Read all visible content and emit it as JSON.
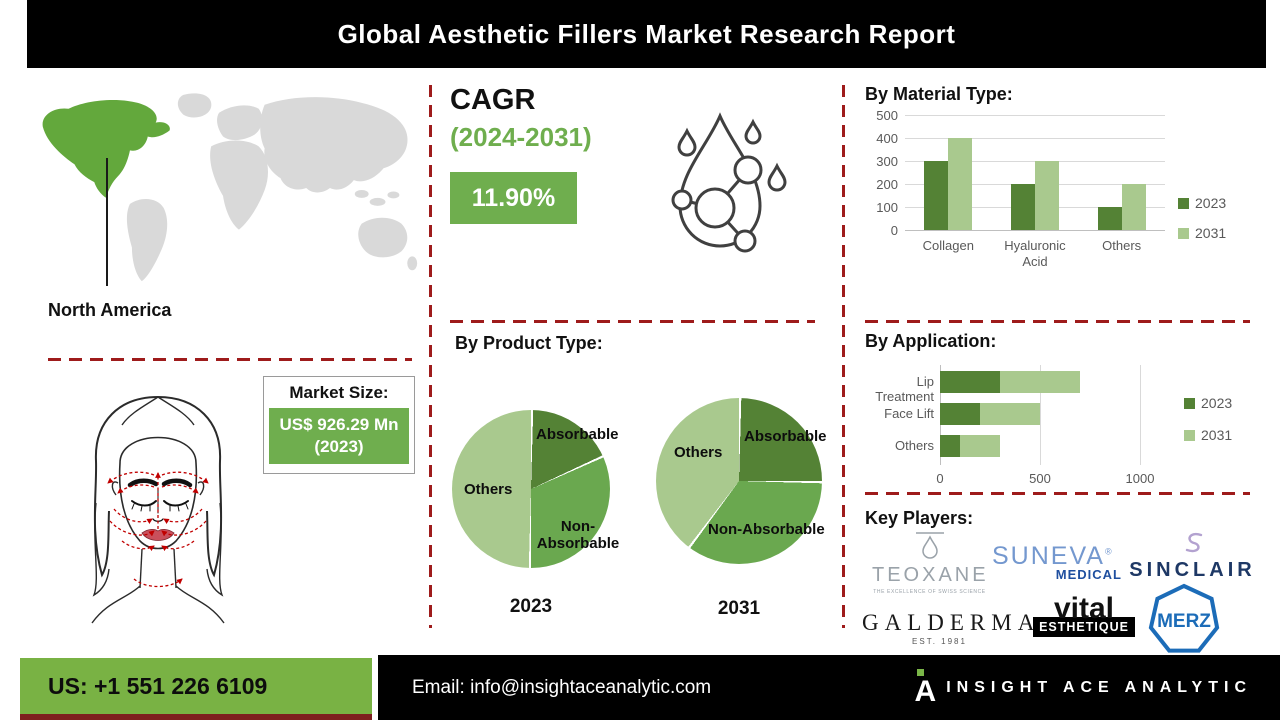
{
  "header": {
    "title": "Global Aesthetic Fillers Market Research Report"
  },
  "region": {
    "label": "North America"
  },
  "cagr": {
    "heading": "CAGR",
    "period": "(2024-2031)",
    "value": "11.90%"
  },
  "market_size": {
    "label": "Market Size:",
    "value": "US$ 926.29 Mn (2023)"
  },
  "chart_data": [
    {
      "id": "material",
      "type": "bar",
      "title": "By Material Type:",
      "categories": [
        "Collagen",
        "Hyaluronic Acid",
        "Others"
      ],
      "series": [
        {
          "name": "2023",
          "values": [
            300,
            200,
            100
          ]
        },
        {
          "name": "2031",
          "values": [
            400,
            300,
            200
          ]
        }
      ],
      "ylim": [
        0,
        500
      ],
      "yticks": [
        0,
        100,
        200,
        300,
        400,
        500
      ],
      "grid": true,
      "legend_position": "right",
      "colors": {
        "2023": "#548235",
        "2031": "#a9c98e"
      }
    },
    {
      "id": "product",
      "type": "pie",
      "title": "By Product Type:",
      "pies": [
        {
          "label": "2023",
          "slices": [
            {
              "name": "Absorbable",
              "pct": 18
            },
            {
              "name": "Non-Absorbable",
              "pct": 32
            },
            {
              "name": "Others",
              "pct": 50
            }
          ]
        },
        {
          "label": "2031",
          "slices": [
            {
              "name": "Absorbable",
              "pct": 25
            },
            {
              "name": "Non-Absorbable",
              "pct": 35
            },
            {
              "name": "Others",
              "pct": 40
            }
          ]
        }
      ],
      "colors": {
        "Absorbable": "#548235",
        "Non-Absorbable": "#6aa84f",
        "Others": "#a9c98e"
      }
    },
    {
      "id": "application",
      "type": "bar",
      "orientation": "horizontal-stacked",
      "title": "By Application:",
      "categories": [
        "Lip Treatment",
        "Face Lift",
        "Others"
      ],
      "series": [
        {
          "name": "2023",
          "values": [
            300,
            200,
            100
          ]
        },
        {
          "name": "2031",
          "values": [
            400,
            300,
            200
          ]
        }
      ],
      "xlim": [
        0,
        1000
      ],
      "xticks": [
        0,
        500,
        1000
      ],
      "grid": true,
      "legend_position": "right",
      "colors": {
        "2023": "#548235",
        "2031": "#a9c98e"
      }
    }
  ],
  "key_players": {
    "title": "Key Players:",
    "items": [
      {
        "name": "TEOXANE",
        "tagline": "THE EXCELLENCE OF SWISS SCIENCE"
      },
      {
        "name": "SUNEVA",
        "reg": "®",
        "sub": "MEDICAL"
      },
      {
        "name": "SINCLAIR"
      },
      {
        "name": "GALDERMA",
        "sub": "EST. 1981"
      },
      {
        "name": "vital",
        "sub": "ESTHETIQUE"
      },
      {
        "name": "MERZ"
      }
    ]
  },
  "footer": {
    "phone": "US: +1 551 226 6109",
    "email": "Email: info@insightaceanalytic.com",
    "brand": "INSIGHT ACE ANALYTIC",
    "logo_letter": "A"
  }
}
